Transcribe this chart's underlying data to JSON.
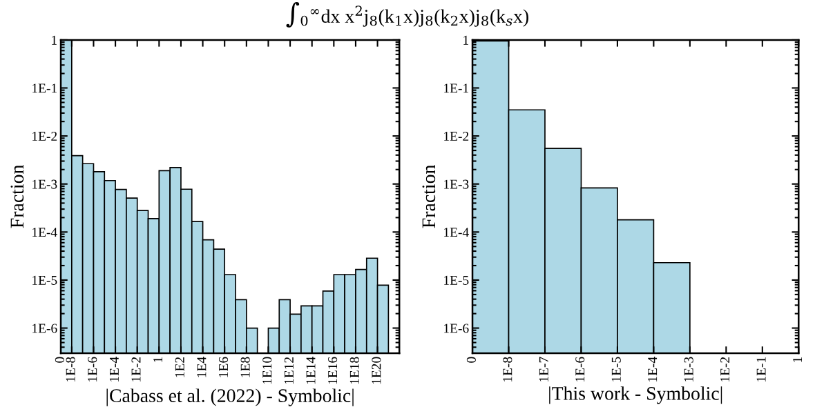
{
  "chart_data": [
    {
      "type": "histogram",
      "title": "∫$_{0}$$^{∞}$dx x$^{2}$j$_{8}$(k$_{1}$x)j$_{8}$(k$_{2}$x)j$_{8}$(k$_{s}$x)",
      "xlabel": "|Cabass et al. (2022) - Symbolic|",
      "ylabel": "Fraction",
      "color": "#add8e6",
      "bins": [
        1e-09,
        1e-08,
        1e-07,
        1e-06,
        1e-05,
        0.0001,
        0.001,
        0.01,
        0.1,
        1,
        10.0,
        100.0,
        1000.0,
        10000.0,
        100000.0,
        1000000.0,
        10000000.0,
        100000000.0,
        1000000000.0,
        10000000000.0,
        100000000000.0,
        1000000000000.0,
        10000000000000.0,
        100000000000000.0,
        1000000000000000.0,
        1e+16,
        1e+17,
        1e+18,
        1e+19,
        1e+20,
        1e+21
      ],
      "values": [
        1,
        0.0039,
        0.00265,
        0.0018,
        0.00118,
        0.00077,
        0.00051,
        0.00028,
        0.00019,
        0.0019,
        0.0022,
        0.00078,
        0.000165,
        6.9e-05,
        4.4e-05,
        1.3e-05,
        3.9e-06,
        1e-06,
        null,
        1e-06,
        3.9e-06,
        1.95e-06,
        2.9e-06,
        2.9e-06,
        5.9e-06,
        1.3e-05,
        1.3e-05,
        1.66e-05,
        2.85e-05,
        7.8e-06
      ],
      "log": "xy",
      "xlim": [
        1e-09,
        1e+22
      ],
      "ylim": [
        3e-07,
        1
      ],
      "xticks": [
        {
          "value": 1e-09,
          "label": "0"
        },
        {
          "value": 1e-08,
          "label": "1E-8"
        },
        {
          "value": 1e-06,
          "label": "1E-6"
        },
        {
          "value": 0.0001,
          "label": "1E-4"
        },
        {
          "value": 0.01,
          "label": "1E-2"
        },
        1,
        {
          "value": 100.0,
          "label": "1E2"
        },
        {
          "value": 10000.0,
          "label": "1E4"
        },
        {
          "value": 1000000.0,
          "label": "1E6"
        },
        {
          "value": 100000000.0,
          "label": "1E8"
        },
        {
          "value": 10000000000.0,
          "label": "1E10"
        },
        {
          "value": 1000000000000.0,
          "label": "1E12"
        },
        {
          "value": 100000000000000.0,
          "label": "1E14"
        },
        {
          "value": 1e+16,
          "label": "1E16"
        },
        {
          "value": 1e+18,
          "label": "1E18"
        },
        {
          "value": 1e+20,
          "label": "1E20"
        }
      ],
      "yticks": [
        {
          "value": 1e-06,
          "label": "1E-6"
        },
        {
          "value": 1e-05,
          "label": "1E-5"
        },
        {
          "value": 0.0001,
          "label": "1E-4"
        },
        {
          "value": 0.001,
          "label": "1E-3"
        },
        {
          "value": 0.01,
          "label": "1E-2"
        },
        {
          "value": 0.1,
          "label": "1E-1"
        },
        1
      ]
    },
    {
      "type": "histogram",
      "xlabel": "|This work - Symbolic|",
      "ylabel": "Fraction",
      "color": "#add8e6",
      "bins": [
        1e-09,
        1e-08,
        1e-07,
        1e-06,
        1e-05,
        0.0001,
        0.001
      ],
      "values": [
        0.95,
        0.035,
        0.0055,
        0.00083,
        0.00018,
        2.3e-05
      ],
      "log": "xy",
      "xlim": [
        1e-09,
        1
      ],
      "ylim": [
        3e-07,
        1
      ],
      "xticks": [
        {
          "value": 1e-09,
          "label": "0"
        },
        {
          "value": 1e-08,
          "label": "1E-8"
        },
        {
          "value": 1e-07,
          "label": "1E-7"
        },
        {
          "value": 1e-06,
          "label": "1E-6"
        },
        {
          "value": 1e-05,
          "label": "1E-5"
        },
        {
          "value": 0.0001,
          "label": "1E-4"
        },
        {
          "value": 0.001,
          "label": "1E-3"
        },
        {
          "value": 0.01,
          "label": "1E-2"
        },
        {
          "value": 0.1,
          "label": "1E-1"
        },
        1
      ],
      "yticks": [
        {
          "value": 1e-06,
          "label": "1E-6"
        },
        {
          "value": 1e-05,
          "label": "1E-5"
        },
        {
          "value": 0.0001,
          "label": "1E-4"
        },
        {
          "value": 0.001,
          "label": "1E-3"
        },
        {
          "value": 0.01,
          "label": "1E-2"
        },
        {
          "value": 0.1,
          "label": "1E-1"
        },
        1
      ]
    }
  ]
}
